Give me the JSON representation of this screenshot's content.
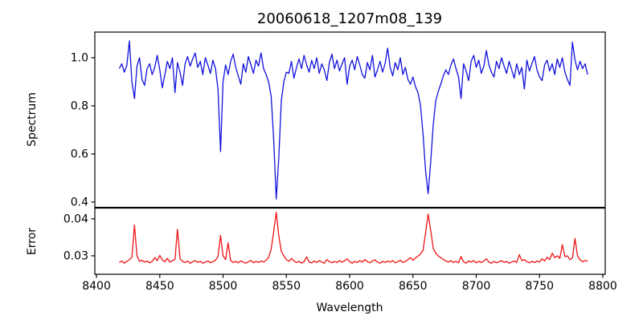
{
  "figure": {
    "background": "#ffffff",
    "frame_color": "#000000"
  },
  "chart_data": {
    "type": "line",
    "title": "20060618_1207m08_139",
    "xlabel": "Wavelength",
    "xlim": [
      8398.7,
      8801.9
    ],
    "grid": false,
    "legend": "none",
    "xticks": [
      {
        "v": 8400,
        "label": "8400"
      },
      {
        "v": 8450,
        "label": "8450"
      },
      {
        "v": 8500,
        "label": "8500"
      },
      {
        "v": 8550,
        "label": "8550"
      },
      {
        "v": 8600,
        "label": "8600"
      },
      {
        "v": 8650,
        "label": "8650"
      },
      {
        "v": 8700,
        "label": "8700"
      },
      {
        "v": 8750,
        "label": "8750"
      },
      {
        "v": 8800,
        "label": "8800"
      }
    ],
    "x_start": 8418,
    "x_step": 2,
    "n_points": 186,
    "panels": [
      {
        "id": "spectrum",
        "ylabel": "Spectrum",
        "color": "#1212dd",
        "ylim": [
          0.3783,
          1.1067
        ],
        "yticks": [
          {
            "v": 0.4,
            "label": "0.4"
          },
          {
            "v": 0.6,
            "label": "0.6"
          },
          {
            "v": 0.8,
            "label": "0.8"
          },
          {
            "v": 1.0,
            "label": "1.0"
          }
        ],
        "values": [
          0.955,
          0.975,
          0.94,
          0.968,
          1.07,
          0.9,
          0.83,
          0.965,
          1.0,
          0.91,
          0.885,
          0.955,
          0.975,
          0.93,
          0.96,
          1.01,
          0.95,
          0.875,
          0.93,
          0.985,
          0.955,
          1.0,
          0.855,
          0.98,
          0.94,
          0.885,
          0.975,
          1.005,
          0.965,
          0.995,
          1.02,
          0.96,
          0.985,
          0.93,
          1.0,
          0.97,
          0.935,
          0.99,
          0.955,
          0.87,
          0.61,
          0.9,
          0.97,
          0.93,
          0.985,
          1.015,
          0.96,
          0.925,
          0.89,
          0.975,
          0.94,
          1.005,
          0.97,
          0.935,
          0.99,
          0.965,
          1.02,
          0.955,
          0.93,
          0.9,
          0.84,
          0.66,
          0.413,
          0.58,
          0.82,
          0.9,
          0.94,
          0.935,
          0.985,
          0.915,
          0.96,
          0.995,
          0.955,
          1.01,
          0.97,
          0.94,
          0.99,
          0.955,
          1.0,
          0.935,
          0.975,
          0.95,
          0.905,
          0.98,
          1.015,
          0.955,
          0.99,
          0.945,
          0.975,
          1.0,
          0.89,
          0.965,
          0.99,
          0.95,
          1.005,
          0.97,
          0.93,
          0.915,
          0.98,
          0.95,
          1.01,
          0.92,
          0.95,
          0.985,
          0.94,
          0.975,
          1.04,
          0.96,
          0.925,
          0.98,
          0.95,
          1.0,
          0.93,
          0.96,
          0.91,
          0.89,
          0.92,
          0.88,
          0.855,
          0.8,
          0.68,
          0.53,
          0.435,
          0.565,
          0.72,
          0.82,
          0.86,
          0.89,
          0.925,
          0.95,
          0.93,
          0.97,
          0.995,
          0.955,
          0.92,
          0.83,
          0.975,
          0.945,
          0.905,
          0.985,
          1.01,
          0.96,
          0.99,
          0.935,
          0.965,
          1.03,
          0.97,
          0.94,
          0.92,
          0.985,
          0.955,
          1.0,
          0.965,
          0.935,
          0.985,
          0.95,
          0.915,
          0.975,
          0.93,
          0.96,
          0.87,
          0.99,
          0.945,
          0.975,
          1.005,
          0.95,
          0.92,
          0.905,
          0.97,
          0.99,
          0.945,
          0.975,
          0.93,
          0.995,
          0.96,
          1.0,
          0.94,
          0.91,
          0.885,
          1.065,
          0.99,
          0.95,
          0.985,
          0.955,
          0.975,
          0.93
        ]
      },
      {
        "id": "error",
        "ylabel": "Error",
        "color": "#ee1414",
        "ylim": [
          0.025,
          0.0429
        ],
        "yticks": [
          {
            "v": 0.03,
            "label": "0.03"
          },
          {
            "v": 0.04,
            "label": "0.04"
          }
        ],
        "values": [
          0.0282,
          0.0286,
          0.028,
          0.0285,
          0.029,
          0.0296,
          0.0383,
          0.03,
          0.0285,
          0.0288,
          0.0283,
          0.0286,
          0.0281,
          0.0285,
          0.0295,
          0.0287,
          0.0301,
          0.0289,
          0.0284,
          0.0293,
          0.0283,
          0.0287,
          0.029,
          0.0372,
          0.0292,
          0.0285,
          0.0282,
          0.0286,
          0.028,
          0.0284,
          0.0287,
          0.0282,
          0.0285,
          0.028,
          0.0283,
          0.0286,
          0.0281,
          0.0284,
          0.0288,
          0.0298,
          0.0355,
          0.03,
          0.029,
          0.0335,
          0.0287,
          0.0282,
          0.0285,
          0.0281,
          0.0286,
          0.0283,
          0.028,
          0.0284,
          0.0287,
          0.0281,
          0.0285,
          0.0282,
          0.0286,
          0.0283,
          0.0288,
          0.0296,
          0.0318,
          0.0365,
          0.0418,
          0.0355,
          0.0312,
          0.03,
          0.029,
          0.0285,
          0.0293,
          0.0286,
          0.0282,
          0.0285,
          0.028,
          0.0284,
          0.0297,
          0.0283,
          0.0281,
          0.0286,
          0.0282,
          0.0287,
          0.0283,
          0.028,
          0.029,
          0.0284,
          0.0281,
          0.0285,
          0.0282,
          0.0287,
          0.0283,
          0.0286,
          0.0292,
          0.0284,
          0.028,
          0.0285,
          0.0282,
          0.0287,
          0.0283,
          0.029,
          0.0284,
          0.0281,
          0.0286,
          0.0289,
          0.0283,
          0.028,
          0.0285,
          0.0282,
          0.0286,
          0.0283,
          0.0287,
          0.0281,
          0.0284,
          0.0288,
          0.0282,
          0.0285,
          0.029,
          0.0295,
          0.0288,
          0.0294,
          0.0299,
          0.0305,
          0.0315,
          0.0362,
          0.0413,
          0.037,
          0.032,
          0.0308,
          0.03,
          0.0295,
          0.029,
          0.0286,
          0.0283,
          0.0287,
          0.0282,
          0.0285,
          0.0281,
          0.0298,
          0.0284,
          0.028,
          0.0286,
          0.0283,
          0.0287,
          0.0281,
          0.0285,
          0.0282,
          0.0286,
          0.0292,
          0.0283,
          0.028,
          0.0285,
          0.0281,
          0.0284,
          0.0287,
          0.0282,
          0.0285,
          0.028,
          0.0283,
          0.0286,
          0.0282,
          0.0303,
          0.0287,
          0.029,
          0.0284,
          0.0281,
          0.0285,
          0.0282,
          0.0286,
          0.0283,
          0.0292,
          0.0286,
          0.0296,
          0.029,
          0.0307,
          0.0295,
          0.03,
          0.0293,
          0.033,
          0.0298,
          0.03,
          0.029,
          0.0294,
          0.0347,
          0.03,
          0.0289,
          0.0284,
          0.0287,
          0.0285
        ]
      }
    ]
  }
}
